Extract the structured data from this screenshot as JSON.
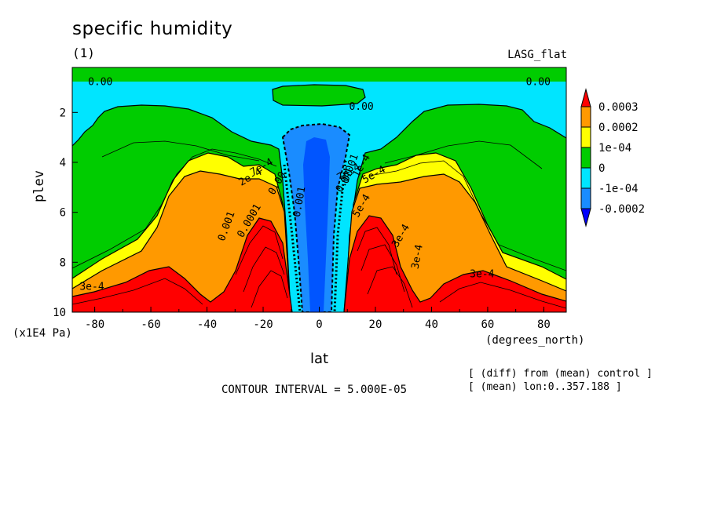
{
  "header": {
    "title": "specific humidity",
    "subtitle": "(1)",
    "model": "LASG_flat"
  },
  "footer": {
    "contour_interval": "CONTOUR INTERVAL = 5.000E-05",
    "note_diff": "[ (diff) from (mean) control ]",
    "note_mean": "[ (mean) lon:0..357.188 ]"
  },
  "chart_data": {
    "type": "contour",
    "title": "specific humidity",
    "xlabel": "lat",
    "xunit": "(degrees_north)",
    "ylabel": "plev",
    "yunit": "(x1E4 Pa)",
    "xlim": [
      -88,
      88
    ],
    "ylim": [
      10,
      0.2
    ],
    "xticks": [
      "-80",
      "-60",
      "-40",
      "-20",
      "0",
      "20",
      "40",
      "60",
      "80"
    ],
    "yticks": [
      "2",
      "4",
      "6",
      "8",
      "10"
    ],
    "colorbar": {
      "levels": [
        "0.0003",
        "0.0002",
        "1e-04",
        "0",
        "-1e-04",
        "-0.0002"
      ],
      "colors": [
        "#ff0000",
        "#ff9900",
        "#ffff00",
        "#00cc00",
        "#00e5ff",
        "#1a8cff",
        "#0000ff"
      ]
    },
    "contour_labels": [
      "0.00",
      "0.00",
      "0.00",
      "7e-4",
      "2e-4",
      "3e-4",
      "7e-4",
      "5e-4",
      "3e-4",
      "0.001",
      "0.00",
      "0.001",
      "5e-4",
      "3e-4",
      "0.001",
      "1e-4",
      "0.00",
      "0.0001",
      "3e-4"
    ]
  }
}
